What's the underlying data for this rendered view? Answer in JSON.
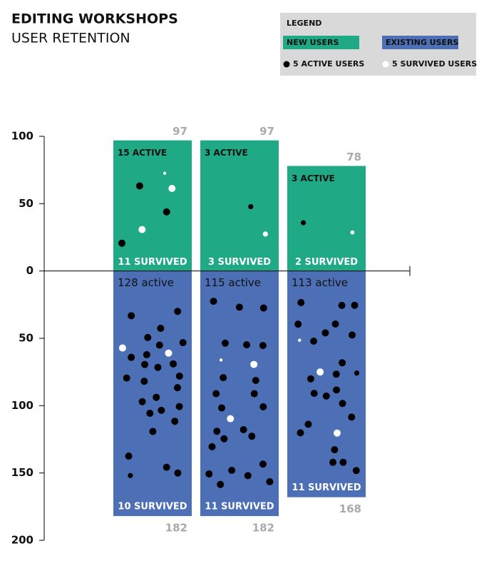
{
  "chart_data": {
    "type": "diverging-bar",
    "title": "EDITING WORKSHOPS",
    "subtitle": "USER RETENTION",
    "ylim": [
      -200,
      100
    ],
    "yticks": [
      100,
      50,
      0,
      {
        "value": -50,
        "label": "50"
      },
      {
        "value": -100,
        "label": "100"
      },
      {
        "value": -150,
        "label": "150"
      },
      {
        "value": -200,
        "label": "200"
      }
    ],
    "legend": {
      "title": "LEGEND",
      "active_label": "5 ACTIVE USERS",
      "survived_label": "5 SURVIVED USERS",
      "dot_unit": 5
    },
    "series": [
      {
        "name": "NEW USERS",
        "color": "#1fa985",
        "values": [
          97,
          97,
          78
        ],
        "active": [
          15,
          3,
          3
        ],
        "survived": [
          11,
          3,
          2
        ],
        "active_labels": [
          "15 ACTIVE",
          "3 ACTIVE",
          "3 ACTIVE"
        ],
        "survived_labels": [
          "11 SURVIVED",
          "3 SURVIVED",
          "2 SURVIVED"
        ]
      },
      {
        "name": "EXISTING USERS",
        "color": "#4d6fb6",
        "values": [
          -182,
          -182,
          -168
        ],
        "value_labels": [
          "182",
          "182",
          "168"
        ],
        "active": [
          128,
          115,
          113
        ],
        "survived": [
          10,
          11,
          11
        ],
        "active_labels": [
          "128 active",
          "115 active",
          "113 active"
        ],
        "survived_labels": [
          "10 SURVIVED",
          "11 SURVIVED",
          "11 SURVIVED"
        ]
      }
    ]
  }
}
